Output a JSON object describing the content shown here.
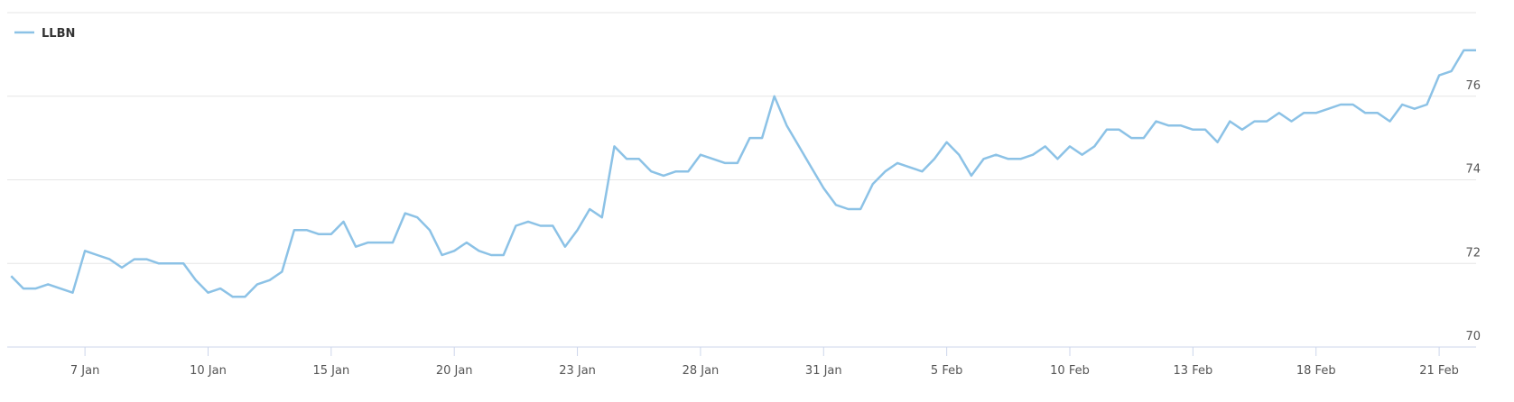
{
  "chart_data": {
    "type": "line",
    "categories": [
      null,
      null,
      null,
      null,
      null,
      null,
      "7 Jan",
      null,
      null,
      null,
      null,
      null,
      null,
      null,
      null,
      null,
      "10 Jan",
      null,
      null,
      null,
      null,
      null,
      null,
      null,
      null,
      null,
      "15 Jan",
      null,
      null,
      null,
      null,
      null,
      null,
      null,
      null,
      null,
      "20 Jan",
      null,
      null,
      null,
      null,
      null,
      null,
      null,
      null,
      null,
      "23 Jan",
      null,
      null,
      null,
      null,
      null,
      null,
      null,
      null,
      null,
      "28 Jan",
      null,
      null,
      null,
      null,
      null,
      null,
      null,
      null,
      null,
      "31 Jan",
      null,
      null,
      null,
      null,
      null,
      null,
      null,
      null,
      null,
      "5 Feb",
      null,
      null,
      null,
      null,
      null,
      null,
      null,
      null,
      null,
      "10 Feb",
      null,
      null,
      null,
      null,
      null,
      null,
      null,
      null,
      null,
      "13 Feb",
      null,
      null,
      null,
      null,
      null,
      null,
      null,
      null,
      null,
      "18 Feb",
      null,
      null,
      null,
      null,
      null,
      null,
      null,
      null,
      null,
      "21 Feb",
      null,
      null,
      null
    ],
    "series": [
      {
        "name": "LLBN",
        "color": "#8cc2e6",
        "values": [
          71.7,
          71.4,
          71.4,
          71.5,
          71.4,
          71.3,
          72.3,
          72.2,
          72.1,
          71.9,
          72.1,
          72.1,
          72.0,
          72.0,
          72.0,
          71.6,
          71.3,
          71.4,
          71.2,
          71.2,
          71.5,
          71.6,
          71.8,
          72.8,
          72.8,
          72.7,
          72.7,
          73.0,
          72.4,
          72.5,
          72.5,
          72.5,
          73.2,
          73.1,
          72.8,
          72.2,
          72.3,
          72.5,
          72.3,
          72.2,
          72.2,
          72.9,
          73.0,
          72.9,
          72.9,
          72.4,
          72.8,
          73.3,
          73.1,
          74.8,
          74.5,
          74.5,
          74.2,
          74.1,
          74.2,
          74.2,
          74.6,
          74.5,
          74.4,
          74.4,
          75.0,
          75.0,
          76.0,
          75.3,
          74.8,
          74.3,
          73.8,
          73.4,
          73.3,
          73.3,
          73.9,
          74.2,
          74.4,
          74.3,
          74.2,
          74.5,
          74.9,
          74.6,
          74.1,
          74.5,
          74.6,
          74.5,
          74.5,
          74.6,
          74.8,
          74.5,
          74.8,
          74.6,
          74.8,
          75.2,
          75.2,
          75.0,
          75.0,
          75.4,
          75.3,
          75.3,
          75.2,
          75.2,
          74.9,
          75.4,
          75.2,
          75.4,
          75.4,
          75.6,
          75.4,
          75.6,
          75.6,
          75.7,
          75.8,
          75.8,
          75.6,
          75.6,
          75.4,
          75.8,
          75.7,
          75.8,
          76.5,
          76.6,
          77.1,
          77.1
        ]
      }
    ],
    "ylim": [
      70,
      78
    ],
    "yticks": [
      70,
      72,
      74,
      76
    ],
    "grid": true,
    "legend": "top-left"
  }
}
